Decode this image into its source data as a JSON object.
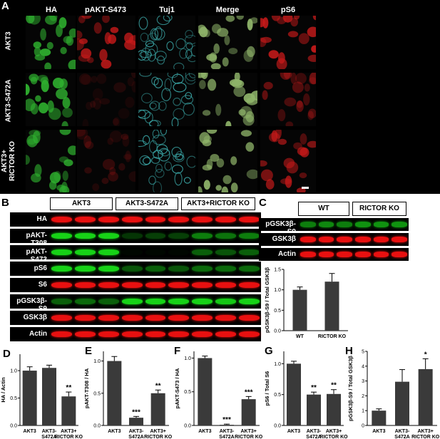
{
  "panelA": {
    "letter": "A",
    "columns": [
      "HA",
      "pAKT-S473",
      "Tuj1",
      "Merge",
      "pS6"
    ],
    "rows": [
      "AKT3",
      "AKT3-S472A",
      "AKT3+\nRICTOR KO"
    ],
    "colors": {
      "green": "#2fb02f",
      "red": "#c81a1a",
      "cyan": "#3aa6a6",
      "merge": "#8fb46a"
    }
  },
  "panelB": {
    "letter": "B",
    "groups": [
      "AKT3",
      "AKT3-S472A",
      "AKT3+RICTOR KO"
    ],
    "bands": [
      "HA",
      "pAKT-T308",
      "pAKT-S473",
      "pS6",
      "S6",
      "pGSK3β-S9",
      "GSK3β",
      "Actin"
    ],
    "band_colors": [
      "red",
      "green",
      "green",
      "green",
      "red",
      "green",
      "red",
      "red"
    ]
  },
  "panelC": {
    "letter": "C",
    "groups": [
      "WT",
      "RICTOR KO"
    ],
    "bands": [
      "pGSK3β-S9",
      "GSK3β",
      "Actin"
    ],
    "band_colors": [
      "green",
      "red",
      "red"
    ]
  },
  "chart_data": [
    {
      "id": "C",
      "type": "bar",
      "categories": [
        "WT",
        "RICTOR KO"
      ],
      "values": [
        1.0,
        1.2
      ],
      "errors": [
        0.07,
        0.2
      ],
      "sig": [
        "",
        ""
      ],
      "ylabel": "pGSK3β-S9 / Total GSK3β",
      "ylim": [
        0,
        1.5
      ],
      "yticks": [
        "0.0",
        "0.5",
        "1.0",
        "1.5"
      ]
    },
    {
      "id": "D",
      "letter": "D",
      "type": "bar",
      "categories": [
        "AKT3",
        "AKT3-\nS472A",
        "AKT3+\nRICTOR KO"
      ],
      "values": [
        1.0,
        1.05,
        0.53
      ],
      "errors": [
        0.07,
        0.05,
        0.08
      ],
      "sig": [
        "",
        "",
        "**"
      ],
      "ylabel": "HA / Actin",
      "ylim": [
        0,
        1.3
      ],
      "yticks": [
        "0.0",
        "0.5",
        "1.0"
      ]
    },
    {
      "id": "E",
      "letter": "E",
      "type": "bar",
      "categories": [
        "AKT3",
        "AKT3-\nS472A",
        "AKT3+\nRICTOR KO"
      ],
      "values": [
        1.0,
        0.12,
        0.5
      ],
      "errors": [
        0.07,
        0.02,
        0.05
      ],
      "sig": [
        "",
        "***",
        "**"
      ],
      "ylabel": "pAKT-T308 / HA",
      "ylim": [
        0,
        1.15
      ],
      "yticks": [
        "0.0",
        "0.5",
        "1.0"
      ]
    },
    {
      "id": "F",
      "letter": "F",
      "type": "bar",
      "categories": [
        "AKT3",
        "AKT3-\nS472A",
        "AKT3+\nRICTOR KO"
      ],
      "values": [
        1.0,
        0.01,
        0.39
      ],
      "errors": [
        0.03,
        0.01,
        0.04
      ],
      "sig": [
        "",
        "***",
        "***"
      ],
      "ylabel": "pAKT-S473 / HA",
      "ylim": [
        0,
        1.1
      ],
      "yticks": [
        "0.0",
        "0.5",
        "1.0"
      ]
    },
    {
      "id": "G",
      "letter": "G",
      "type": "bar",
      "categories": [
        "AKT3",
        "AKT3-\nS472A",
        "AKT3+\nRICTOR KO"
      ],
      "values": [
        1.0,
        0.5,
        0.51
      ],
      "errors": [
        0.04,
        0.04,
        0.07
      ],
      "sig": [
        "",
        "**",
        "**"
      ],
      "ylabel": "pS6 / Total S6",
      "ylim": [
        0,
        1.2
      ],
      "yticks": [
        "0.0",
        "0.5",
        "1.0"
      ]
    },
    {
      "id": "H",
      "letter": "H",
      "type": "bar",
      "categories": [
        "AKT3",
        "AKT3-\nS472A",
        "AKT3+\nRICTOR KO"
      ],
      "values": [
        1.0,
        2.95,
        3.8
      ],
      "errors": [
        0.12,
        0.82,
        0.7
      ],
      "sig": [
        "",
        "",
        "*"
      ],
      "ylabel": "pGSK3β-S9 / Total GSK3β",
      "ylim": [
        0,
        5
      ],
      "yticks": [
        "0",
        "1",
        "2",
        "3",
        "4",
        "5"
      ]
    }
  ]
}
